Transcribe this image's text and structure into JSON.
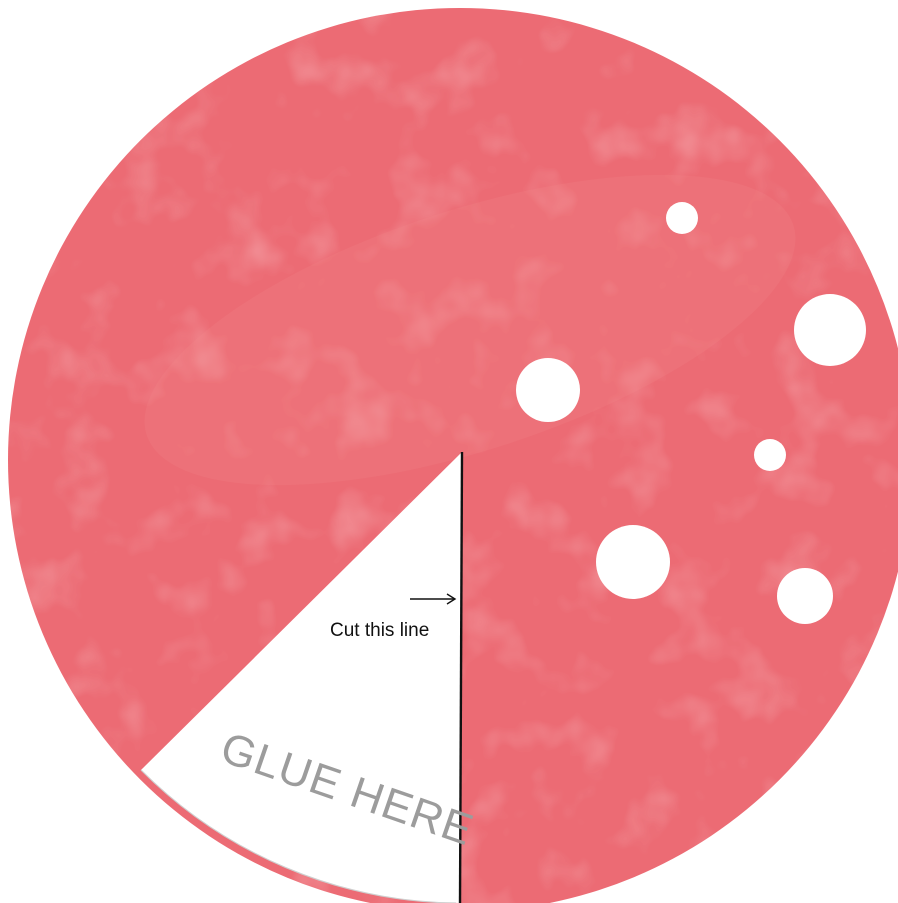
{
  "template": {
    "cut_label": "Cut this line",
    "glue_label": "GLUE HERE",
    "colors": {
      "disc": "#ec6b74",
      "disc_highlight": "#f08a8e",
      "glue_area": "#ffffff",
      "glue_outline": "#c9c9c9",
      "cut_line": "#111111",
      "glue_text": "#9c9c9c",
      "holes": "#ffffff"
    },
    "icons": {
      "arrow": "right-arrow-icon"
    }
  }
}
